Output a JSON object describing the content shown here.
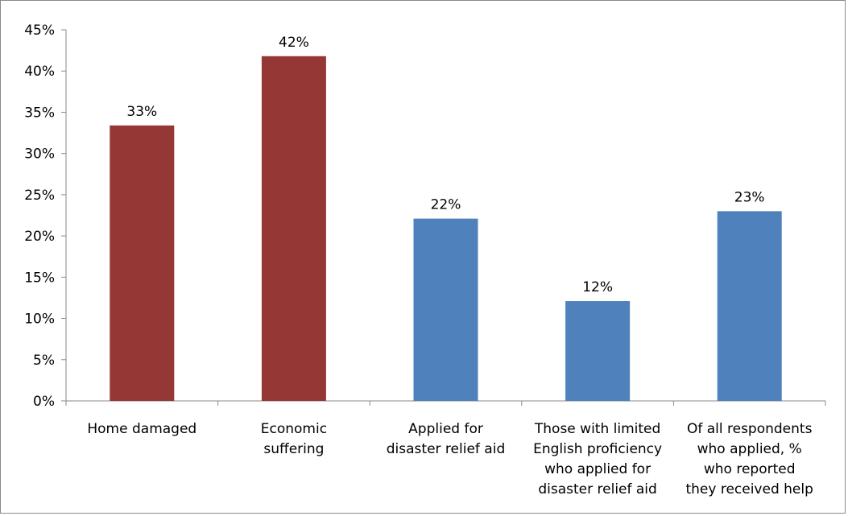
{
  "chart_data": {
    "type": "bar",
    "title": "",
    "xlabel": "",
    "ylabel": "",
    "ylim": [
      0,
      45
    ],
    "y_ticks": [
      "0%",
      "5%",
      "10%",
      "15%",
      "20%",
      "25%",
      "30%",
      "35%",
      "40%",
      "45%"
    ],
    "grid": false,
    "legend": "none",
    "categories": [
      [
        "Home damaged"
      ],
      [
        "Economic",
        "suffering"
      ],
      [
        "Applied for",
        "disaster relief aid"
      ],
      [
        "Those with limited",
        "English proficiency",
        "who applied for",
        "disaster relief aid"
      ],
      [
        "Of all respondents",
        "who applied, %",
        "who reported",
        "they received help"
      ]
    ],
    "values": [
      33.4,
      41.8,
      22.1,
      12.1,
      23.0
    ],
    "data_labels": [
      "33%",
      "42%",
      "22%",
      "12%",
      "23%"
    ],
    "bar_colors": [
      "#953735",
      "#953735",
      "#4F81BD",
      "#4F81BD",
      "#4F81BD"
    ],
    "axis_color": "#898989"
  }
}
